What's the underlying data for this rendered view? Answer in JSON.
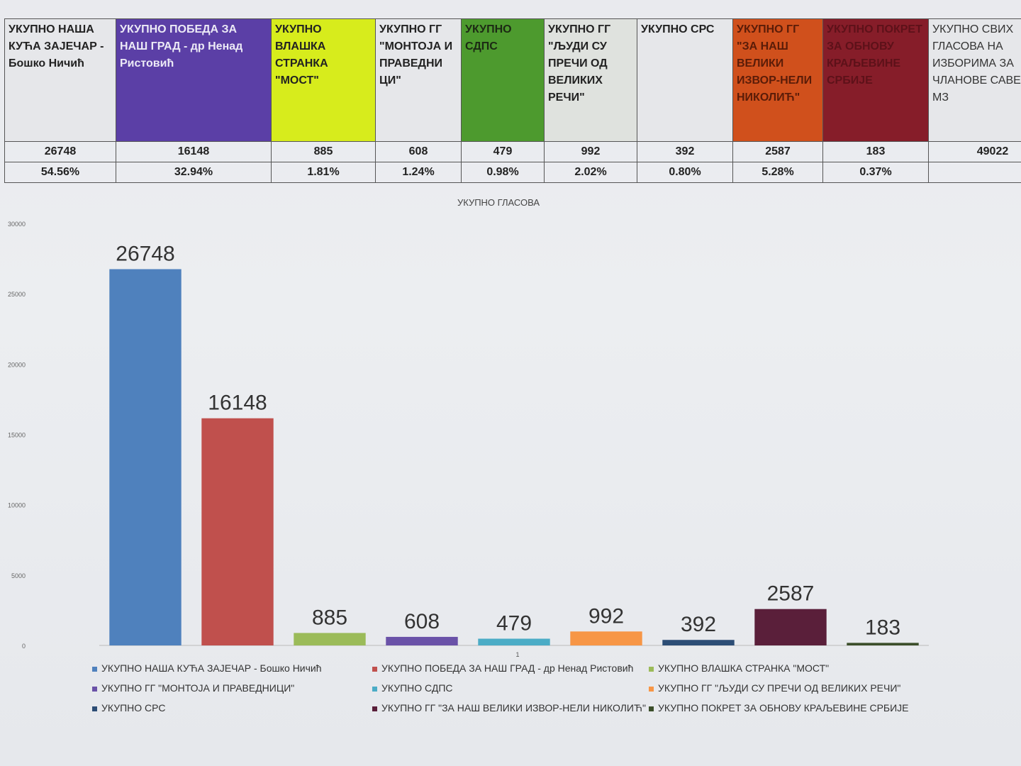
{
  "table": {
    "columns": [
      {
        "header": "УКУПНО НАША КУЋА ЗАЈЕЧАР - Бошко Ничић",
        "votes": "26748",
        "percent": "54.56%",
        "bg": "#e6e7ea",
        "fg": "#222"
      },
      {
        "header": "УКУПНО ПОБЕДА ЗА НАШ ГРАД - др Ненад Ристовић",
        "votes": "16148",
        "percent": "32.94%",
        "bg": "#5b3fa6",
        "fg": "#eceaf6"
      },
      {
        "header": "УКУПНО ВЛАШКА СТРАНКА \"МОСТ\"",
        "votes": "885",
        "percent": "1.81%",
        "bg": "#d7ec1c",
        "fg": "#222"
      },
      {
        "header": "УКУПНО ГГ \"МОНТОЈА И ПРАВЕДНИ ЦИ\"",
        "votes": "608",
        "percent": "1.24%",
        "bg": "#e6e7ea",
        "fg": "#222"
      },
      {
        "header": "УКУПНО СДПС",
        "votes": "479",
        "percent": "0.98%",
        "bg": "#4d9a2e",
        "fg": "#1c2a14"
      },
      {
        "header": "УКУПНО ГГ \"ЉУДИ СУ ПРЕЧИ ОД ВЕЛИКИХ РЕЧИ\"",
        "votes": "992",
        "percent": "2.02%",
        "bg": "#dfe2de",
        "fg": "#222"
      },
      {
        "header": "УКУПНО СРС",
        "votes": "392",
        "percent": "0.80%",
        "bg": "#e6e7ea",
        "fg": "#222"
      },
      {
        "header": "УКУПНО ГГ \"ЗА НАШ ВЕЛИКИ ИЗВОР-НЕЛИ НИКОЛИЋ\"",
        "votes": "2587",
        "percent": "5.28%",
        "bg": "#d0501c",
        "fg": "#5a1c08"
      },
      {
        "header": "УКУПНО ПОКРЕТ ЗА ОБНОВУ КРАЉЕВИНЕ СРБИЈЕ",
        "votes": "183",
        "percent": "0.37%",
        "bg": "#861d29",
        "fg": "#5d1119"
      },
      {
        "header": "УКУПНО СВИХ ГЛАСОВА НА ИЗБОРИМА ЗА ЧЛАНОВЕ САВЕТА МЗ",
        "votes": "49022",
        "percent": "",
        "bg": "#e6e7ea",
        "fg": "#333"
      }
    ]
  },
  "chart_data": {
    "type": "bar",
    "title": "УКУПНО ГЛАСОВА",
    "categories": [
      "1"
    ],
    "ylim": [
      0,
      30000
    ],
    "yticks": [
      0,
      5000,
      10000,
      15000,
      20000,
      25000,
      30000
    ],
    "grid": false,
    "legend_position": "bottom",
    "series": [
      {
        "name": "УКУПНО НАША КУЋА ЗАЈЕЧАР - Бошко Ничић",
        "values": [
          26748
        ],
        "color": "#4f81bd"
      },
      {
        "name": "УКУПНО ПОБЕДА ЗА НАШ ГРАД - др Ненад Ристовић",
        "values": [
          16148
        ],
        "color": "#c0504d"
      },
      {
        "name": "УКУПНО ВЛАШКА СТРАНКА \"МОСТ\"",
        "values": [
          885
        ],
        "color": "#9bbb59"
      },
      {
        "name": "УКУПНО ГГ \"МОНТОЈА И ПРАВЕДНИЦИ\"",
        "values": [
          608
        ],
        "color": "#6a52a8"
      },
      {
        "name": "УКУПНО СДПС",
        "values": [
          479
        ],
        "color": "#4bacc6"
      },
      {
        "name": "УКУПНО ГГ \"ЉУДИ СУ ПРЕЧИ ОД ВЕЛИКИХ РЕЧИ\"",
        "values": [
          992
        ],
        "color": "#f79646"
      },
      {
        "name": "УКУПНО СРС",
        "values": [
          392
        ],
        "color": "#2c4d75"
      },
      {
        "name": "УКУПНО ГГ \"ЗА НАШ ВЕЛИКИ ИЗВОР-НЕЛИ НИКОЛИЋ\"",
        "values": [
          2587
        ],
        "color": "#5a1f3a"
      },
      {
        "name": "УКУПНО ПОКРЕТ ЗА ОБНОВУ КРАЉЕВИНЕ СРБИЈЕ",
        "values": [
          183
        ],
        "color": "#3b4e2a"
      }
    ]
  }
}
